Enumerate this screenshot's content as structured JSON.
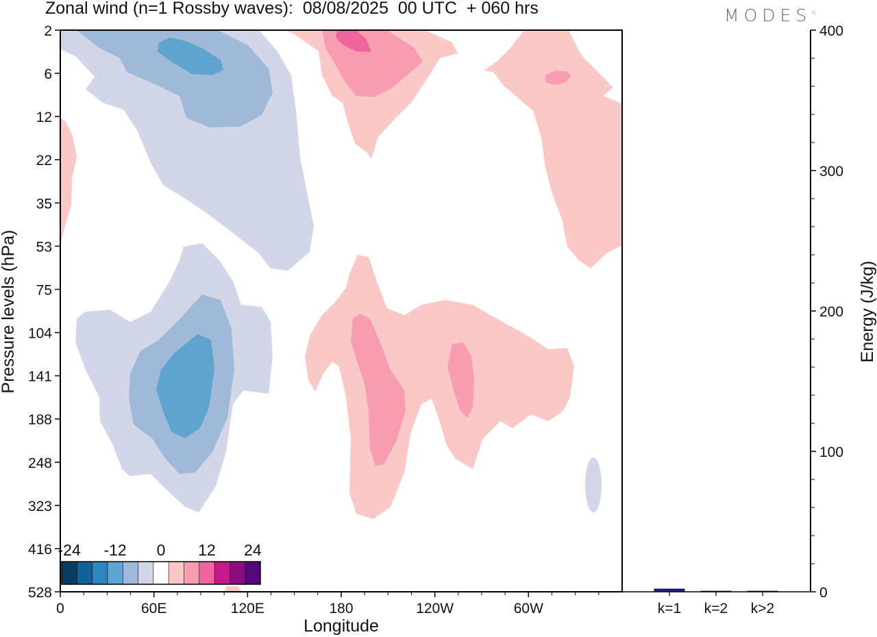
{
  "chart_data": [
    {
      "type": "heatmap",
      "title": "Zonal wind (n=1 Rossby waves):  08/08/2025  00 UTC  + 060 hrs",
      "xlabel": "Longitude",
      "ylabel": "Pressure levels (hPa)",
      "x_ticks": [
        "0",
        "60E",
        "120E",
        "180",
        "120W",
        "60W"
      ],
      "y_ticks": [
        "2",
        "6",
        "12",
        "22",
        "35",
        "53",
        "75",
        "104",
        "141",
        "188",
        "248",
        "323",
        "416",
        "528"
      ],
      "colorbar": {
        "tick_labels": [
          "-24",
          "-12",
          "0",
          "12",
          "24"
        ],
        "levels": [
          -30,
          -26,
          -22,
          -18,
          -14,
          -10,
          -6,
          6,
          10,
          14,
          18,
          22,
          26,
          30
        ],
        "colors": [
          "#0b3c5d",
          "#11629a",
          "#2f85c2",
          "#5fa3cf",
          "#a0b9d9",
          "#d3d6e8",
          "#ffffff",
          "#fac8c6",
          "#f89cb1",
          "#f0649e",
          "#c51b8a",
          "#8b0e80",
          "#54067a"
        ]
      },
      "features": [
        {
          "sign": "negative",
          "peak": -14,
          "region": "upper-left, 20E-110E, 2-12 hPa"
        },
        {
          "sign": "negative",
          "peak": -14,
          "region": "lower-left, 20E-120E, 75-323 hPa"
        },
        {
          "sign": "positive",
          "peak": 14,
          "region": "top, 160E-160W, 2-22 hPa"
        },
        {
          "sign": "positive",
          "peak": 10,
          "region": "top-right, 80W-0, 2-75 hPa"
        },
        {
          "sign": "positive",
          "peak": 10,
          "region": "center, 150E-60W, 53-323 hPa"
        },
        {
          "sign": "negative",
          "peak": -6,
          "region": "lower-right, ~30W, 248-323 hPa"
        }
      ]
    },
    {
      "type": "bar",
      "title": "",
      "categories": [
        "k=1",
        "k=2",
        "k>2"
      ],
      "values": [
        2,
        0,
        0.5
      ],
      "ylabel": "Energy (J/kg)",
      "ylim": [
        0,
        400
      ],
      "y_ticks": [
        "0",
        "100",
        "200",
        "300",
        "400"
      ],
      "bar_color": "#1a1a8c"
    }
  ],
  "logo": "MODES"
}
